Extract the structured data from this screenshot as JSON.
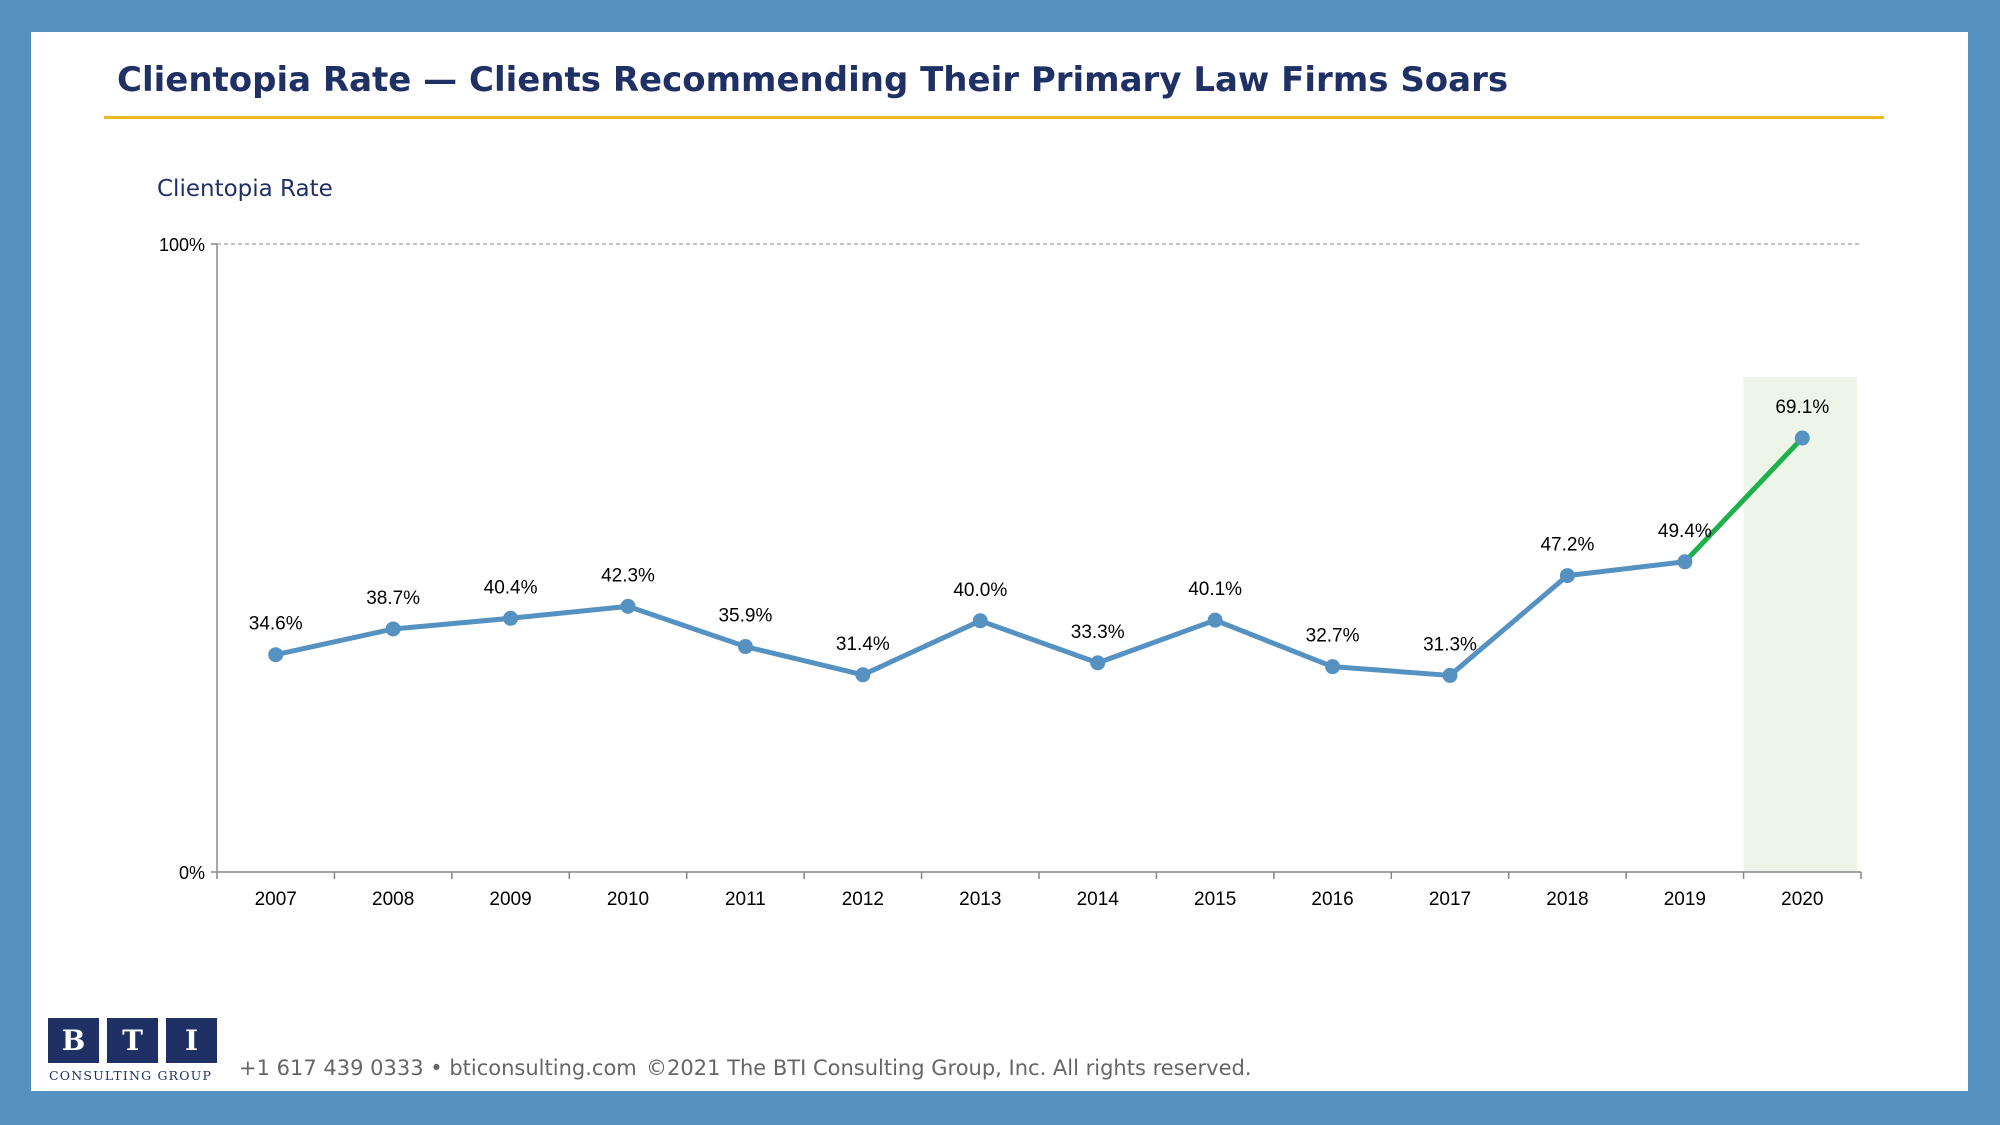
{
  "title": "Clientopia Rate — Clients Recommending Their Primary Law Firms Soars",
  "footer": {
    "logo_letters": [
      "B",
      "T",
      "I"
    ],
    "logo_subtitle": "CONSULTING GROUP",
    "contact": "+1 617 439 0333 • bticonsulting.com",
    "copyright": "©2021 The BTI Consulting Group, Inc. All rights reserved."
  },
  "colors": {
    "series": "#5592c2",
    "highlight_line": "#1db14b",
    "highlight_band": "#edf5e8",
    "title": "#1f3064",
    "title_rule": "#f0b81f"
  },
  "chart_data": {
    "type": "line",
    "ylabel": "Clientopia Rate",
    "ylim": [
      0,
      100
    ],
    "y_tick_labels": [
      "0%",
      "100%"
    ],
    "categories": [
      "2007",
      "2008",
      "2009",
      "2010",
      "2011",
      "2012",
      "2013",
      "2014",
      "2015",
      "2016",
      "2017",
      "2018",
      "2019",
      "2020"
    ],
    "series": [
      {
        "values": [
          34.6,
          38.7,
          40.4,
          42.3,
          35.9,
          31.4,
          40.0,
          33.3,
          40.1,
          32.7,
          31.3,
          47.2,
          49.4,
          69.1
        ],
        "data_labels": [
          "34.6%",
          "38.7%",
          "40.4%",
          "42.3%",
          "35.9%",
          "31.4%",
          "40.0%",
          "33.3%",
          "40.1%",
          "32.7%",
          "31.3%",
          "47.2%",
          "49.4%",
          "69.1%"
        ]
      }
    ],
    "highlight": {
      "category": "2020",
      "segment_from": "2019"
    },
    "grid": "dashed line at 100%",
    "legend": "none"
  }
}
